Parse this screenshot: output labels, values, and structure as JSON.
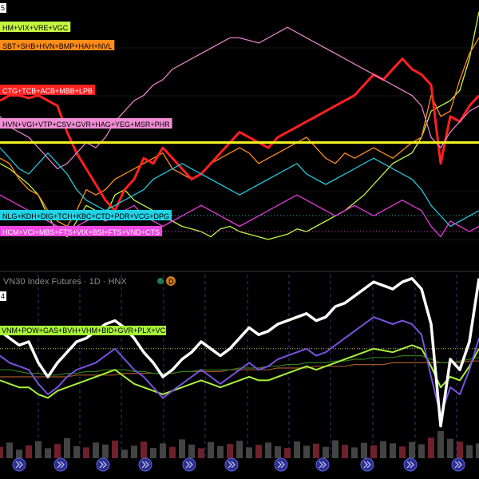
{
  "top_panel": {
    "pane_number": "5",
    "series": [
      {
        "name": "HM+VIX+VRE+VGC",
        "color": "#c6f542",
        "label_bg": "#c6f542",
        "label_fg": "#000000",
        "row": 0
      },
      {
        "name": "SBT+SHB+HVN+BMP+HAH+NVL",
        "color": "#ff8c1a",
        "label_bg": "#ff8c1a",
        "label_fg": "#000000",
        "row": 1
      },
      {
        "name": "CTG+TCB+ACB+MBB+LPB",
        "color": "#ff2020",
        "label_bg": "#ff2020",
        "label_fg": "#ffffff",
        "row": 2
      },
      {
        "name": "HVN+VGI+VTP+CSV+GVR+HAG+YEG+MSR+PHR",
        "color": "#e47fc6",
        "label_bg": "#f08fd4",
        "label_fg": "#000000",
        "row": 3
      },
      {
        "name": "NLG+KDH+DIG+TCH+KBC+CTD+PDR+VCG+DPG",
        "color": "#22c4d8",
        "label_bg": "#22d3e6",
        "label_fg": "#000000",
        "row": 4
      },
      {
        "name": "HCM+VCI+MBS+FTS+VIX+BSI+FTS+VND+CTS",
        "color": "#e83ad8",
        "label_bg": "#ee44e0",
        "label_fg": "#ffffff",
        "row": 5
      }
    ]
  },
  "bottom_panel": {
    "title": "VN30 Index Futures · 1D · HNX",
    "pane_number": "4",
    "badge": "D",
    "composite_label": "VNM+POW+GAS+BVH+VHM+BID+GVR+PLX+VCB",
    "composite_color": "#a8f23a"
  },
  "chart_data": [
    {
      "type": "line",
      "ylim": [
        0,
        100
      ],
      "x": [
        0,
        2,
        4,
        6,
        8,
        10,
        12,
        14,
        16,
        18,
        20,
        22,
        24,
        26,
        28,
        30,
        32,
        34,
        36,
        38,
        40,
        42,
        44,
        46,
        48,
        50,
        52,
        54,
        56,
        58,
        60,
        62,
        64,
        66,
        68,
        70,
        72,
        74,
        76,
        78,
        80,
        82,
        84,
        86,
        88,
        90,
        92,
        94,
        96,
        98,
        100
      ],
      "reference_line": {
        "y": 48,
        "color": "#f0f020"
      },
      "series": [
        {
          "name": "HM+VIX+VRE+VGC",
          "color": "#c6f542",
          "values": [
            40,
            38,
            35,
            32,
            28,
            20,
            14,
            12,
            18,
            24,
            22,
            20,
            28,
            30,
            26,
            24,
            22,
            20,
            18,
            16,
            15,
            14,
            12,
            15,
            16,
            14,
            13,
            12,
            11,
            12,
            13,
            15,
            14,
            16,
            18,
            20,
            22,
            25,
            28,
            32,
            36,
            40,
            42,
            44,
            50,
            60,
            62,
            64,
            68,
            80,
            98
          ]
        },
        {
          "name": "SBT+SHB+HVN+BMP+HAH+NVL",
          "color": "#ff8c1a",
          "values": [
            42,
            40,
            34,
            30,
            28,
            22,
            18,
            16,
            22,
            30,
            28,
            30,
            34,
            36,
            38,
            40,
            42,
            44,
            38,
            36,
            34,
            36,
            40,
            42,
            44,
            46,
            44,
            40,
            42,
            44,
            46,
            48,
            50,
            46,
            42,
            40,
            44,
            42,
            44,
            46,
            44,
            42,
            45,
            48,
            50,
            66,
            58,
            60,
            72,
            82,
            88
          ]
        },
        {
          "name": "CTG+TCB+ACB+MBB+LPB",
          "color": "#ff2020",
          "values": [
            64,
            66,
            66,
            65,
            66,
            64,
            62,
            52,
            44,
            38,
            32,
            26,
            22,
            30,
            34,
            42,
            40,
            46,
            42,
            38,
            34,
            36,
            40,
            44,
            48,
            52,
            50,
            48,
            46,
            50,
            52,
            54,
            56,
            58,
            60,
            62,
            64,
            66,
            70,
            74,
            72,
            76,
            80,
            76,
            74,
            70,
            40,
            58,
            56,
            62,
            66
          ]
        },
        {
          "name": "HVN+VGI+VTP+CSV+GVR+HAG+YEG+MSR+PHR",
          "color": "#e47fc6",
          "values": [
            58,
            54,
            52,
            50,
            46,
            42,
            38,
            40,
            44,
            48,
            46,
            50,
            56,
            60,
            64,
            66,
            70,
            72,
            76,
            78,
            80,
            82,
            84,
            86,
            88,
            88,
            87,
            86,
            88,
            90,
            92,
            90,
            88,
            86,
            84,
            82,
            80,
            78,
            76,
            74,
            72,
            70,
            68,
            66,
            62,
            50,
            46,
            52,
            56,
            60,
            62
          ]
        },
        {
          "name": "NLG+KDH+DIG+TCH+KBC+CTD+PDR+VCG+DPG",
          "color": "#22c4d8",
          "values": [
            46,
            42,
            38,
            36,
            40,
            44,
            40,
            36,
            30,
            26,
            24,
            22,
            24,
            26,
            28,
            30,
            34,
            36,
            38,
            40,
            38,
            36,
            34,
            32,
            30,
            28,
            30,
            32,
            34,
            36,
            38,
            40,
            36,
            34,
            32,
            34,
            36,
            38,
            40,
            42,
            40,
            38,
            36,
            34,
            30,
            24,
            20,
            16,
            18,
            20,
            22
          ]
        },
        {
          "name": "HCM+VCI+MBS+FTS+VIX+BSI+FTS+VND+CTS",
          "color": "#e83ad8",
          "values": [
            28,
            26,
            24,
            22,
            20,
            18,
            16,
            14,
            16,
            18,
            20,
            18,
            20,
            22,
            24,
            20,
            18,
            16,
            18,
            20,
            22,
            24,
            22,
            20,
            18,
            16,
            18,
            20,
            22,
            24,
            26,
            28,
            26,
            24,
            22,
            20,
            22,
            24,
            22,
            20,
            22,
            24,
            26,
            24,
            22,
            16,
            12,
            18,
            16,
            14,
            16
          ]
        }
      ]
    },
    {
      "type": "line",
      "ylim": [
        0,
        100
      ],
      "x": [
        0,
        2,
        4,
        6,
        8,
        10,
        12,
        14,
        16,
        18,
        20,
        22,
        24,
        26,
        28,
        30,
        32,
        34,
        36,
        38,
        40,
        42,
        44,
        46,
        48,
        50,
        52,
        54,
        56,
        58,
        60,
        62,
        64,
        66,
        68,
        70,
        72,
        74,
        76,
        78,
        80,
        82,
        84,
        86,
        88,
        90,
        92,
        94,
        96,
        98,
        100
      ],
      "reference_line": {
        "y": 56,
        "color": "#c9c94a"
      },
      "series": [
        {
          "name": "VN30 Index Futures",
          "color": "#ffffff",
          "values": [
            66,
            62,
            58,
            60,
            48,
            40,
            48,
            54,
            60,
            62,
            66,
            70,
            72,
            68,
            62,
            54,
            48,
            40,
            44,
            50,
            54,
            60,
            56,
            52,
            56,
            62,
            68,
            64,
            66,
            70,
            72,
            74,
            76,
            72,
            74,
            80,
            82,
            86,
            90,
            94,
            92,
            90,
            94,
            96,
            90,
            70,
            12,
            50,
            44,
            60,
            96
          ]
        },
        {
          "name": "purple",
          "color": "#7a52e0",
          "values": [
            52,
            48,
            46,
            44,
            36,
            30,
            34,
            40,
            44,
            46,
            48,
            52,
            56,
            50,
            44,
            40,
            34,
            28,
            32,
            36,
            40,
            44,
            40,
            36,
            40,
            44,
            48,
            44,
            46,
            50,
            52,
            54,
            56,
            52,
            54,
            58,
            62,
            66,
            70,
            74,
            72,
            70,
            72,
            70,
            64,
            40,
            18,
            34,
            30,
            44,
            62
          ]
        },
        {
          "name": "VNM+POW+GAS+BVH+VHM+BID+GVR+PLX+VCB",
          "color": "#a8f23a",
          "values": [
            38,
            36,
            34,
            34,
            30,
            28,
            32,
            34,
            36,
            38,
            40,
            42,
            44,
            40,
            36,
            34,
            32,
            30,
            32,
            34,
            36,
            38,
            36,
            34,
            36,
            38,
            40,
            38,
            38,
            40,
            42,
            44,
            46,
            44,
            46,
            48,
            50,
            52,
            54,
            56,
            55,
            54,
            56,
            58,
            56,
            46,
            34,
            40,
            38,
            46,
            56
          ]
        },
        {
          "name": "dark-green",
          "color": "#2f7a1c",
          "values": [
            44,
            44,
            43,
            42,
            42,
            41,
            41,
            42,
            42,
            43,
            43,
            44,
            44,
            44,
            43,
            43,
            42,
            42,
            42,
            43,
            43,
            44,
            44,
            44,
            44,
            45,
            45,
            45,
            46,
            46,
            47,
            47,
            48,
            48,
            48,
            49,
            49,
            50,
            50,
            51,
            51,
            51,
            52,
            52,
            52,
            50,
            48,
            48,
            49,
            50,
            51
          ]
        },
        {
          "name": "brown",
          "color": "#a2552a",
          "values": [
            40,
            40,
            40,
            40,
            40,
            40,
            40,
            40,
            41,
            41,
            41,
            41,
            41,
            42,
            42,
            42,
            42,
            42,
            42,
            43,
            43,
            43,
            43,
            43,
            44,
            44,
            44,
            44,
            44,
            45,
            45,
            45,
            45,
            46,
            46,
            46,
            46,
            47,
            47,
            47,
            47,
            48,
            48,
            48,
            48,
            48,
            48,
            48,
            48,
            49,
            49
          ]
        }
      ],
      "volume": [
        40,
        55,
        30,
        45,
        60,
        35,
        50,
        70,
        42,
        38,
        55,
        48,
        62,
        30,
        44,
        58,
        36,
        52,
        40,
        66,
        48,
        35,
        57,
        43,
        50,
        61,
        38,
        47,
        55,
        42,
        36,
        59,
        44,
        51,
        40,
        63,
        47,
        38,
        54,
        45,
        60,
        52,
        41,
        57,
        49,
        72,
        95,
        68,
        58,
        46,
        52
      ]
    }
  ]
}
